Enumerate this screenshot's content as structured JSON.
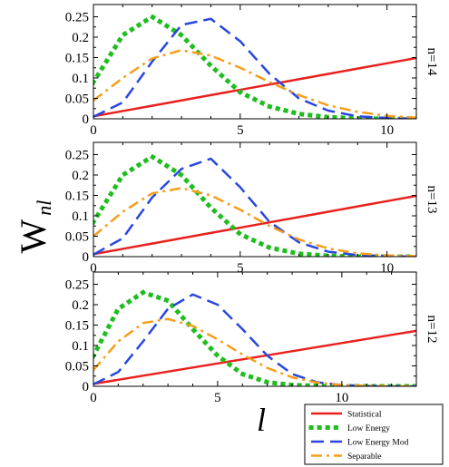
{
  "figure": {
    "ylabel_main": "W",
    "ylabel_sub": "nl",
    "xlabel": "l"
  },
  "colors": {
    "Statistical": "#e8211d",
    "Low Energy": "#1fbd1f",
    "Low Energy Mod": "#2847e0",
    "Separable": "#f59e1b"
  },
  "legend": {
    "placement": "bottom-right",
    "entries": [
      "Statistical",
      "Low Energy",
      "Low Energy Mod",
      "Separable"
    ]
  },
  "chart_data": [
    {
      "type": "line",
      "panel_label": "n=14",
      "xlim": [
        0,
        11
      ],
      "ylim": [
        0,
        0.28
      ],
      "xticks": [
        "0",
        "5",
        "10"
      ],
      "yticks": [
        "0",
        "0.05",
        "0.1",
        "0.15",
        "0.2",
        "0.25"
      ],
      "x": [
        0,
        1,
        2,
        3,
        4,
        5,
        6,
        7,
        8,
        9,
        10,
        11
      ],
      "series": [
        {
          "name": "Statistical",
          "style": "solid",
          "values": [
            0.006,
            0.019,
            0.032,
            0.045,
            0.058,
            0.071,
            0.084,
            0.097,
            0.11,
            0.123,
            0.136,
            0.149
          ]
        },
        {
          "name": "Low Energy",
          "style": "dotted",
          "values": [
            0.09,
            0.205,
            0.25,
            0.205,
            0.13,
            0.065,
            0.03,
            0.012,
            0.004,
            0.001,
            0.0,
            0.0
          ]
        },
        {
          "name": "Low Energy Mod",
          "style": "dashed",
          "values": [
            0.005,
            0.04,
            0.14,
            0.23,
            0.245,
            0.19,
            0.11,
            0.05,
            0.02,
            0.006,
            0.002,
            0.0
          ]
        },
        {
          "name": "Separable",
          "style": "dashdot",
          "values": [
            0.045,
            0.1,
            0.148,
            0.168,
            0.155,
            0.125,
            0.09,
            0.058,
            0.033,
            0.017,
            0.007,
            0.003
          ]
        }
      ]
    },
    {
      "type": "line",
      "panel_label": "n=13",
      "xlim": [
        0,
        11
      ],
      "ylim": [
        0,
        0.28
      ],
      "xticks": [
        "0",
        "5",
        "10"
      ],
      "yticks": [
        "0",
        "0.05",
        "0.1",
        "0.15",
        "0.2",
        "0.25"
      ],
      "x": [
        0,
        1,
        2,
        3,
        4,
        5,
        6,
        7,
        8,
        9,
        10,
        11
      ],
      "series": [
        {
          "name": "Statistical",
          "style": "solid",
          "values": [
            0.006,
            0.019,
            0.032,
            0.045,
            0.058,
            0.071,
            0.084,
            0.097,
            0.11,
            0.123,
            0.136,
            0.149
          ]
        },
        {
          "name": "Low Energy",
          "style": "dotted",
          "values": [
            0.085,
            0.2,
            0.245,
            0.2,
            0.12,
            0.055,
            0.022,
            0.007,
            0.002,
            0.0,
            0.0,
            0.0
          ]
        },
        {
          "name": "Low Energy Mod",
          "style": "dashed",
          "values": [
            0.005,
            0.045,
            0.145,
            0.215,
            0.24,
            0.17,
            0.085,
            0.035,
            0.012,
            0.004,
            0.001,
            0.0
          ]
        },
        {
          "name": "Separable",
          "style": "dashdot",
          "values": [
            0.05,
            0.11,
            0.155,
            0.168,
            0.15,
            0.115,
            0.075,
            0.042,
            0.02,
            0.008,
            0.003,
            0.001
          ]
        }
      ]
    },
    {
      "type": "line",
      "panel_label": "n=12",
      "xlim": [
        0,
        13
      ],
      "ylim": [
        0,
        0.28
      ],
      "xticks": [
        "0",
        "5",
        "10"
      ],
      "yticks": [
        "0",
        "0.05",
        "0.1",
        "0.15",
        "0.2",
        "0.25"
      ],
      "x": [
        0,
        1,
        2,
        3,
        4,
        5,
        6,
        7,
        8,
        9,
        10,
        11,
        12,
        13
      ],
      "series": [
        {
          "name": "Statistical",
          "style": "solid",
          "values": [
            0.006,
            0.016,
            0.026,
            0.036,
            0.046,
            0.056,
            0.066,
            0.076,
            0.086,
            0.096,
            0.106,
            0.116,
            0.126,
            0.136
          ]
        },
        {
          "name": "Low Energy",
          "style": "dotted",
          "values": [
            0.075,
            0.19,
            0.23,
            0.21,
            0.14,
            0.075,
            0.03,
            0.01,
            0.003,
            0.001,
            0.0,
            0.0,
            0.0,
            0.0
          ]
        },
        {
          "name": "Low Energy Mod",
          "style": "dashed",
          "values": [
            0.005,
            0.035,
            0.11,
            0.19,
            0.225,
            0.2,
            0.14,
            0.075,
            0.03,
            0.01,
            0.003,
            0.001,
            0.0,
            0.0
          ]
        },
        {
          "name": "Separable",
          "style": "dashdot",
          "values": [
            0.04,
            0.11,
            0.155,
            0.165,
            0.148,
            0.115,
            0.078,
            0.045,
            0.022,
            0.009,
            0.003,
            0.001,
            0.0,
            0.0
          ]
        }
      ]
    }
  ]
}
